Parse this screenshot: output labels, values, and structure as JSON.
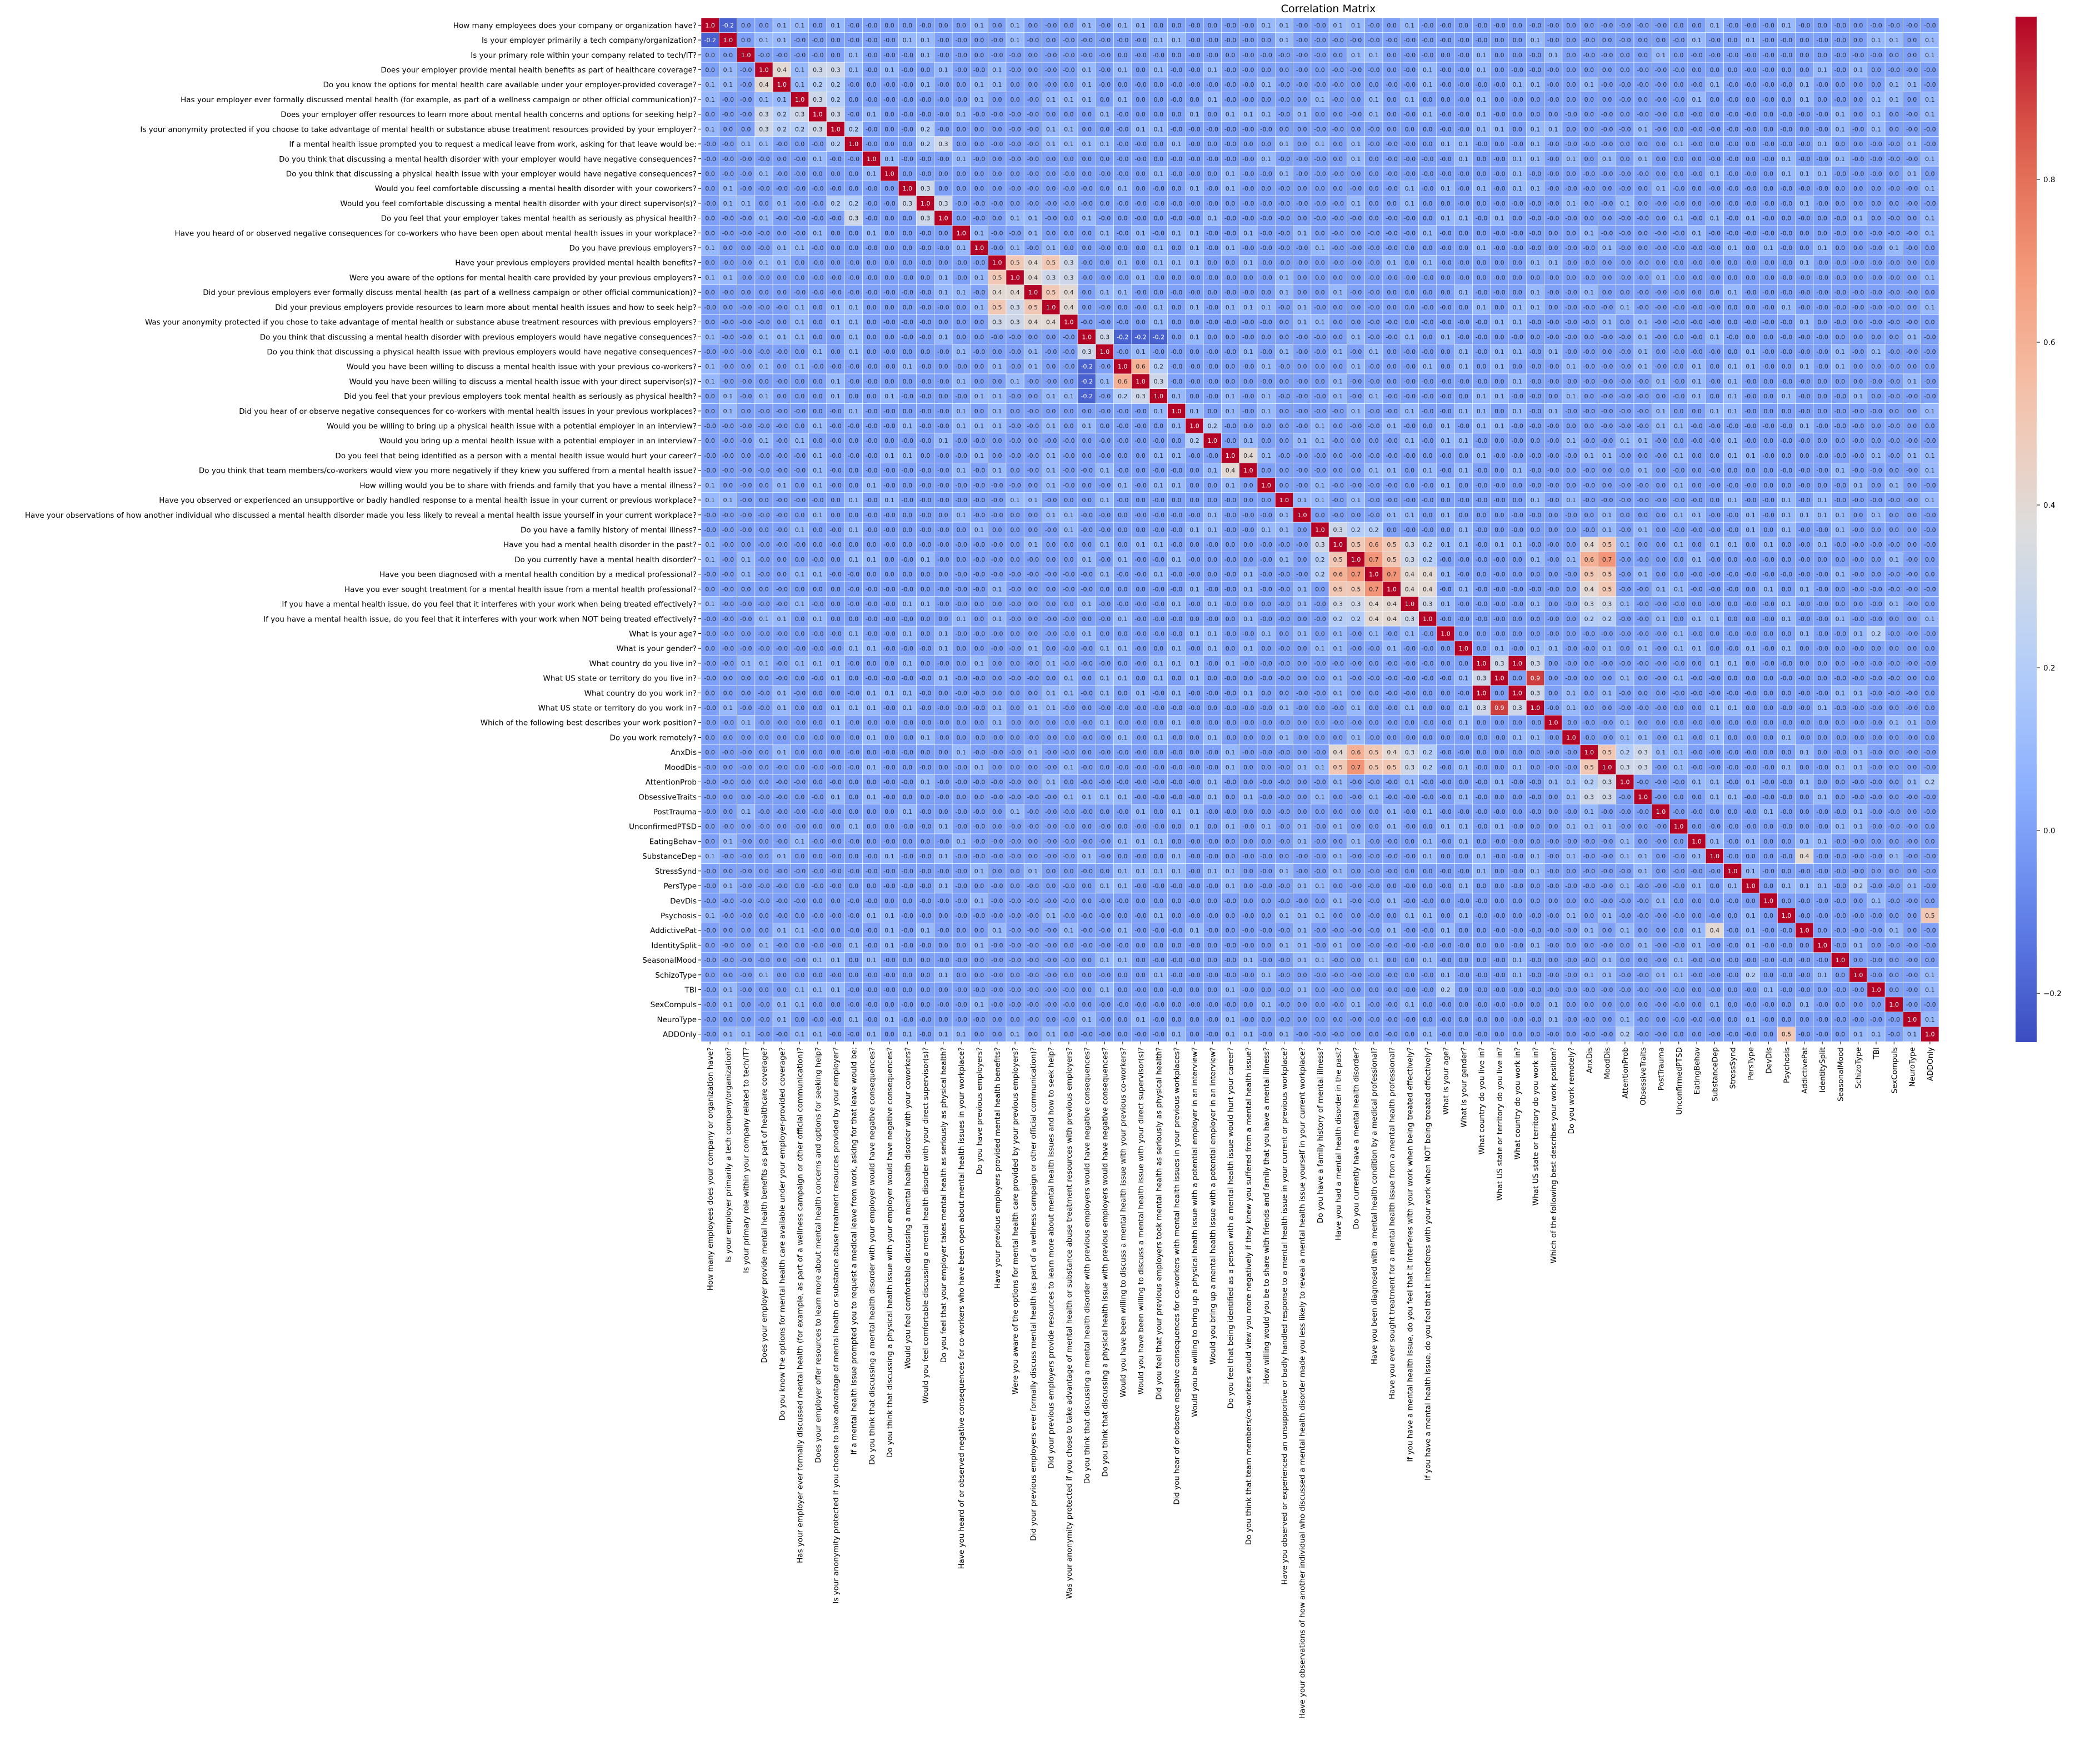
{
  "chart_data": {
    "type": "heatmap",
    "title": "Correlation Matrix",
    "xlabel": "",
    "ylabel": "",
    "colormap": "coolwarm",
    "vmin": -0.26,
    "vmax": 1.0,
    "colorbar_ticks": [
      -0.2,
      0.0,
      0.2,
      0.4,
      0.6,
      0.8
    ],
    "colorbar_tick_labels": [
      "−0.2",
      "0.0",
      "0.2",
      "0.4",
      "0.6",
      "0.8"
    ],
    "value_format": "1 decimal",
    "labels": [
      "How many employees does your company or organization have?",
      "Is your employer primarily a tech company/organization?",
      "Is your primary role within your company related to tech/IT?",
      "Does your employer provide mental health benefits as part of healthcare coverage?",
      "Do you know the options for mental health care available under your employer-provided coverage?",
      "Has your employer ever formally discussed mental health (for example, as part of a wellness campaign or other official communication)?",
      "Does your employer offer resources to learn more about mental health concerns and options for seeking help?",
      "Is your anonymity protected if you choose to take advantage of mental health or substance abuse treatment resources provided by your employer?",
      "If a mental health issue prompted you to request a medical leave from work, asking for that leave would be:",
      "Do you think that discussing a mental health disorder with your employer would have negative consequences?",
      "Do you think that discussing a physical health issue with your employer would have negative consequences?",
      "Would you feel comfortable discussing a mental health disorder with your coworkers?",
      "Would you feel comfortable discussing a mental health disorder with your direct supervisor(s)?",
      "Do you feel that your employer takes mental health as seriously as physical health?",
      "Have you heard of or observed negative consequences for co-workers who have been open about mental health issues in your workplace?",
      "Do you have previous employers?",
      "Have your previous employers provided mental health benefits?",
      "Were you aware of the options for mental health care provided by your previous employers?",
      "Did your previous employers ever formally discuss mental health (as part of a wellness campaign or other official communication)?",
      "Did your previous employers provide resources to learn more about mental health issues and how to seek help?",
      "Was your anonymity protected if you chose to take advantage of mental health or substance abuse treatment resources with previous employers?",
      "Do you think that discussing a mental health disorder with previous employers would have negative consequences?",
      "Do you think that discussing a physical health issue with previous employers would have negative consequences?",
      "Would you have been willing to discuss a mental health issue with your previous co-workers?",
      "Would you have been willing to discuss a mental health issue with your direct supervisor(s)?",
      "Did you feel that your previous employers took mental health as seriously as physical health?",
      "Did you hear of or observe negative consequences for co-workers with mental health issues in your previous workplaces?",
      "Would you be willing to bring up a physical health issue with a potential employer in an interview?",
      "Would you bring up a mental health issue with a potential employer in an interview?",
      "Do you feel that being identified as a person with a mental health issue would hurt your career?",
      "Do you think that team members/co-workers would view you more negatively if they knew you suffered from a mental health issue?",
      "How willing would you be to share with friends and family that you have a mental illness?",
      "Have you observed or experienced an unsupportive or badly handled response to a mental health issue in your current or previous workplace?",
      "Have your observations of how another individual who discussed a mental health disorder made you less likely to reveal a mental health issue yourself in your current workplace?",
      "Do you have a family history of mental illness?",
      "Have you had a mental health disorder in the past?",
      "Do you currently have a mental health disorder?",
      "Have you been diagnosed with a mental health condition by a medical professional?",
      "Have you ever sought treatment for a mental health issue from a mental health professional?",
      "If you have a mental health issue, do you feel that it interferes with your work when being treated effectively?",
      "If you have a mental health issue, do you feel that it interferes with your work when NOT being treated effectively?",
      "What is your age?",
      "What is your gender?",
      "What country do you live in?",
      "What US state or territory do you live in?",
      "What country do you work in?",
      "What US state or territory do you work in?",
      "Which of the following best describes your work position?",
      "Do you work remotely?",
      "AnxDis",
      "MoodDis",
      "AttentionProb",
      "ObsessiveTraits",
      "PostTrauma",
      "UnconfirmedPTSD",
      "EatingBehav",
      "SubstanceDep",
      "StressSynd",
      "PersType",
      "DevDis",
      "Psychosis",
      "AddictivePat",
      "IdentitySplit",
      "SeasonalMood",
      "SchizoType",
      "TBI",
      "SexCompuls",
      "NeuroType",
      "ADDOnly"
    ],
    "notable_pairs": [
      {
        "a": 0,
        "b": 1,
        "value": -0.2
      },
      {
        "a": 0,
        "b": 2,
        "value": 0.0
      },
      {
        "a": 1,
        "b": 2,
        "value": 0.0
      },
      {
        "a": 3,
        "b": 4,
        "value": 0.4
      },
      {
        "a": 3,
        "b": 5,
        "value": 0.1
      },
      {
        "a": 3,
        "b": 6,
        "value": 0.3
      },
      {
        "a": 3,
        "b": 7,
        "value": 0.3
      },
      {
        "a": 4,
        "b": 5,
        "value": 0.1
      },
      {
        "a": 4,
        "b": 6,
        "value": 0.2
      },
      {
        "a": 4,
        "b": 7,
        "value": 0.2
      },
      {
        "a": 5,
        "b": 6,
        "value": 0.3
      },
      {
        "a": 5,
        "b": 7,
        "value": 0.2
      },
      {
        "a": 6,
        "b": 7,
        "value": 0.3
      },
      {
        "a": 7,
        "b": 8,
        "value": 0.2
      },
      {
        "a": 7,
        "b": 12,
        "value": 0.2
      },
      {
        "a": 8,
        "b": 12,
        "value": 0.2
      },
      {
        "a": 8,
        "b": 13,
        "value": 0.3
      },
      {
        "a": 9,
        "b": 10,
        "value": 0.1
      },
      {
        "a": 11,
        "b": 12,
        "value": 0.3
      },
      {
        "a": 12,
        "b": 13,
        "value": 0.3
      },
      {
        "a": 16,
        "b": 17,
        "value": 0.5
      },
      {
        "a": 16,
        "b": 18,
        "value": 0.4
      },
      {
        "a": 16,
        "b": 19,
        "value": 0.5
      },
      {
        "a": 16,
        "b": 20,
        "value": 0.3
      },
      {
        "a": 17,
        "b": 18,
        "value": 0.4
      },
      {
        "a": 17,
        "b": 19,
        "value": 0.3
      },
      {
        "a": 17,
        "b": 20,
        "value": 0.3
      },
      {
        "a": 18,
        "b": 19,
        "value": 0.5
      },
      {
        "a": 18,
        "b": 20,
        "value": 0.4
      },
      {
        "a": 19,
        "b": 20,
        "value": 0.4
      },
      {
        "a": 21,
        "b": 22,
        "value": 0.3
      },
      {
        "a": 21,
        "b": 23,
        "value": -0.2
      },
      {
        "a": 21,
        "b": 24,
        "value": -0.2
      },
      {
        "a": 21,
        "b": 25,
        "value": -0.2
      },
      {
        "a": 23,
        "b": 24,
        "value": 0.6
      },
      {
        "a": 23,
        "b": 25,
        "value": 0.2
      },
      {
        "a": 24,
        "b": 25,
        "value": 0.3
      },
      {
        "a": 27,
        "b": 28,
        "value": 0.2
      },
      {
        "a": 29,
        "b": 30,
        "value": 0.4
      },
      {
        "a": 32,
        "b": 33,
        "value": 0.1
      },
      {
        "a": 34,
        "b": 35,
        "value": 0.3
      },
      {
        "a": 34,
        "b": 36,
        "value": 0.2
      },
      {
        "a": 34,
        "b": 37,
        "value": 0.2
      },
      {
        "a": 35,
        "b": 36,
        "value": 0.5
      },
      {
        "a": 35,
        "b": 37,
        "value": 0.6
      },
      {
        "a": 35,
        "b": 38,
        "value": 0.5
      },
      {
        "a": 35,
        "b": 39,
        "value": 0.3
      },
      {
        "a": 35,
        "b": 40,
        "value": 0.2
      },
      {
        "a": 36,
        "b": 37,
        "value": 0.7
      },
      {
        "a": 36,
        "b": 38,
        "value": 0.5
      },
      {
        "a": 36,
        "b": 39,
        "value": 0.3
      },
      {
        "a": 36,
        "b": 40,
        "value": 0.2
      },
      {
        "a": 37,
        "b": 38,
        "value": 0.7
      },
      {
        "a": 37,
        "b": 39,
        "value": 0.4
      },
      {
        "a": 37,
        "b": 40,
        "value": 0.4
      },
      {
        "a": 38,
        "b": 39,
        "value": 0.4
      },
      {
        "a": 38,
        "b": 40,
        "value": 0.4
      },
      {
        "a": 39,
        "b": 40,
        "value": 0.3
      },
      {
        "a": 43,
        "b": 45,
        "value": 1.0
      },
      {
        "a": 43,
        "b": 44,
        "value": 0.3
      },
      {
        "a": 44,
        "b": 46,
        "value": 0.9
      },
      {
        "a": 45,
        "b": 46,
        "value": 0.3
      },
      {
        "a": 43,
        "b": 46,
        "value": 0.3
      },
      {
        "a": 35,
        "b": 49,
        "value": 0.4
      },
      {
        "a": 35,
        "b": 50,
        "value": 0.5
      },
      {
        "a": 36,
        "b": 49,
        "value": 0.6
      },
      {
        "a": 36,
        "b": 50,
        "value": 0.7
      },
      {
        "a": 37,
        "b": 49,
        "value": 0.5
      },
      {
        "a": 37,
        "b": 50,
        "value": 0.5
      },
      {
        "a": 38,
        "b": 49,
        "value": 0.4
      },
      {
        "a": 38,
        "b": 50,
        "value": 0.5
      },
      {
        "a": 39,
        "b": 49,
        "value": 0.3
      },
      {
        "a": 39,
        "b": 50,
        "value": 0.3
      },
      {
        "a": 40,
        "b": 49,
        "value": 0.2
      },
      {
        "a": 40,
        "b": 50,
        "value": 0.2
      },
      {
        "a": 49,
        "b": 50,
        "value": 0.5
      },
      {
        "a": 49,
        "b": 51,
        "value": 0.2
      },
      {
        "a": 50,
        "b": 51,
        "value": 0.3
      },
      {
        "a": 50,
        "b": 52,
        "value": 0.3
      },
      {
        "a": 49,
        "b": 52,
        "value": 0.3
      },
      {
        "a": 56,
        "b": 61,
        "value": 0.4
      },
      {
        "a": 60,
        "b": 68,
        "value": 0.5
      },
      {
        "a": 58,
        "b": 64,
        "value": 0.2
      },
      {
        "a": 41,
        "b": 65,
        "value": 0.2
      },
      {
        "a": 51,
        "b": 68,
        "value": 0.2
      }
    ]
  }
}
